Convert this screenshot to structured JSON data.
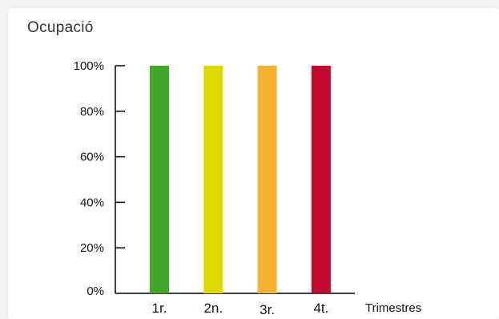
{
  "title": "Ocupació",
  "chart_data": {
    "type": "bar",
    "title": "Ocupació",
    "categories": [
      "1r.",
      "2n.",
      "3r.",
      "4t."
    ],
    "values": [
      100,
      100,
      100,
      100
    ],
    "colors": [
      "#43a72e",
      "#dcd800",
      "#f7b132",
      "#c0092c"
    ],
    "xlabel": "Trimestres",
    "ylabel": "",
    "ylim": [
      0,
      100
    ],
    "yticks": [
      "0%",
      "20%",
      "40%",
      "60%",
      "80%",
      "100%"
    ],
    "grid": false,
    "legend": "none"
  }
}
